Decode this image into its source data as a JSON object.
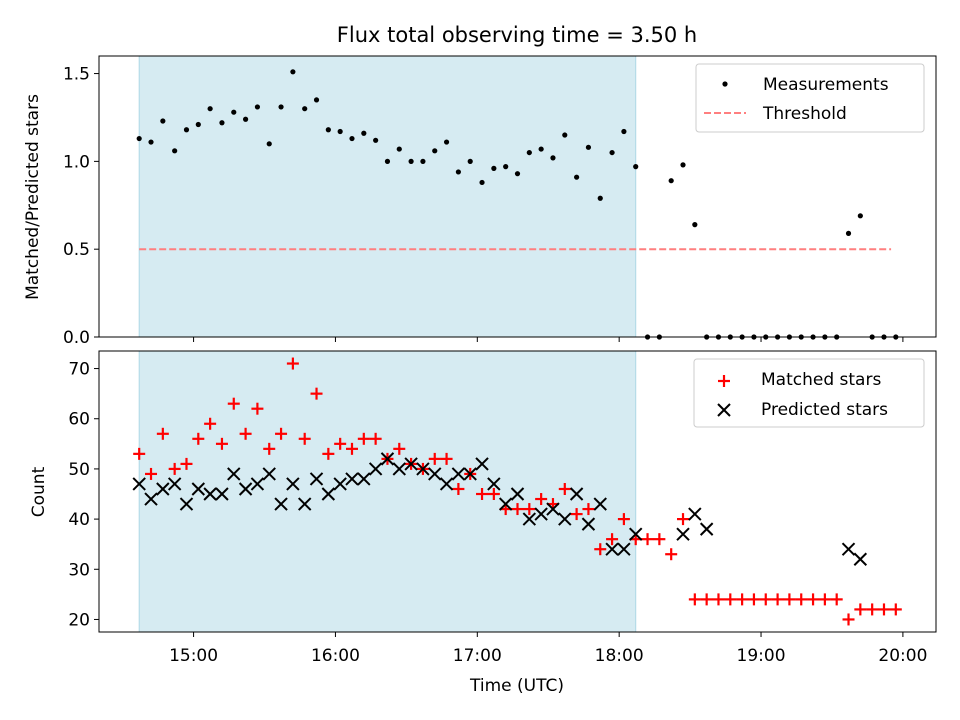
{
  "figure": {
    "title": "Flux total observing time = 3.50 h"
  },
  "chart_data": [
    {
      "type": "scatter",
      "ylabel": "Matched/Predicted stars",
      "xlim": [
        "14:20",
        "20:14"
      ],
      "ylim": [
        0,
        1.6
      ],
      "yticks": [
        "0.0",
        "0.5",
        "1.0",
        "1.5"
      ],
      "shaded_region": {
        "from": "14:37",
        "to": "18:07",
        "color": "#add8e6"
      },
      "grid": false,
      "legend_position": "top-right",
      "legend": [
        "Measurements",
        "Threshold"
      ],
      "threshold": {
        "name": "Threshold",
        "from": "14:37",
        "to": "19:55",
        "value": 0.5,
        "color": "#ff7f7f",
        "style": "dashed"
      },
      "series": [
        {
          "name": "Measurements",
          "marker": "dot",
          "color": "#000000",
          "points": [
            [
              "14:37",
              1.13
            ],
            [
              "14:42",
              1.11
            ],
            [
              "14:47",
              1.23
            ],
            [
              "14:52",
              1.06
            ],
            [
              "14:57",
              1.18
            ],
            [
              "15:02",
              1.21
            ],
            [
              "15:07",
              1.3
            ],
            [
              "15:12",
              1.22
            ],
            [
              "15:17",
              1.28
            ],
            [
              "15:22",
              1.24
            ],
            [
              "15:27",
              1.31
            ],
            [
              "15:32",
              1.1
            ],
            [
              "15:37",
              1.31
            ],
            [
              "15:42",
              1.51
            ],
            [
              "15:47",
              1.3
            ],
            [
              "15:52",
              1.35
            ],
            [
              "15:57",
              1.18
            ],
            [
              "16:02",
              1.17
            ],
            [
              "16:07",
              1.13
            ],
            [
              "16:12",
              1.16
            ],
            [
              "16:17",
              1.12
            ],
            [
              "16:22",
              1.0
            ],
            [
              "16:27",
              1.07
            ],
            [
              "16:32",
              1.0
            ],
            [
              "16:37",
              1.0
            ],
            [
              "16:42",
              1.06
            ],
            [
              "16:47",
              1.11
            ],
            [
              "16:52",
              0.94
            ],
            [
              "16:57",
              1.0
            ],
            [
              "17:02",
              0.88
            ],
            [
              "17:07",
              0.96
            ],
            [
              "17:12",
              0.97
            ],
            [
              "17:17",
              0.93
            ],
            [
              "17:22",
              1.05
            ],
            [
              "17:27",
              1.07
            ],
            [
              "17:32",
              1.02
            ],
            [
              "17:37",
              1.15
            ],
            [
              "17:42",
              0.91
            ],
            [
              "17:47",
              1.08
            ],
            [
              "17:52",
              0.79
            ],
            [
              "17:57",
              1.05
            ],
            [
              "18:02",
              1.17
            ],
            [
              "18:07",
              0.97
            ],
            [
              "18:12",
              0.0
            ],
            [
              "18:17",
              0.0
            ],
            [
              "18:22",
              0.89
            ],
            [
              "18:27",
              0.98
            ],
            [
              "18:32",
              0.64
            ],
            [
              "18:37",
              0.0
            ],
            [
              "18:42",
              0.0
            ],
            [
              "18:47",
              0.0
            ],
            [
              "18:52",
              0.0
            ],
            [
              "18:57",
              0.0
            ],
            [
              "19:02",
              0.0
            ],
            [
              "19:07",
              0.0
            ],
            [
              "19:12",
              0.0
            ],
            [
              "19:17",
              0.0
            ],
            [
              "19:22",
              0.0
            ],
            [
              "19:27",
              0.0
            ],
            [
              "19:32",
              0.0
            ],
            [
              "19:37",
              0.59
            ],
            [
              "19:42",
              0.69
            ],
            [
              "19:47",
              0.0
            ],
            [
              "19:52",
              0.0
            ],
            [
              "19:57",
              0.0
            ]
          ]
        }
      ]
    },
    {
      "type": "scatter",
      "xlabel": "Time (UTC)",
      "ylabel": "Count",
      "xlim": [
        "14:20",
        "20:14"
      ],
      "ylim": [
        17.5,
        73.5
      ],
      "yticks": [
        "20",
        "30",
        "40",
        "50",
        "60",
        "70"
      ],
      "xticks": [
        "15:00",
        "16:00",
        "17:00",
        "18:00",
        "19:00",
        "20:00"
      ],
      "shaded_region": {
        "from": "14:37",
        "to": "18:07",
        "color": "#add8e6"
      },
      "grid": false,
      "legend_position": "top-right",
      "legend": [
        "Matched stars",
        "Predicted stars"
      ],
      "series": [
        {
          "name": "Matched stars",
          "marker": "plus",
          "color": "#ff0000",
          "points": [
            [
              "14:37",
              53
            ],
            [
              "14:42",
              49
            ],
            [
              "14:47",
              57
            ],
            [
              "14:52",
              50
            ],
            [
              "14:57",
              51
            ],
            [
              "15:02",
              56
            ],
            [
              "15:07",
              59
            ],
            [
              "15:12",
              55
            ],
            [
              "15:17",
              63
            ],
            [
              "15:22",
              57
            ],
            [
              "15:27",
              62
            ],
            [
              "15:32",
              54
            ],
            [
              "15:37",
              57
            ],
            [
              "15:42",
              71
            ],
            [
              "15:47",
              56
            ],
            [
              "15:52",
              65
            ],
            [
              "15:57",
              53
            ],
            [
              "16:02",
              55
            ],
            [
              "16:07",
              54
            ],
            [
              "16:12",
              56
            ],
            [
              "16:17",
              56
            ],
            [
              "16:22",
              52
            ],
            [
              "16:27",
              54
            ],
            [
              "16:32",
              51
            ],
            [
              "16:37",
              50
            ],
            [
              "16:42",
              52
            ],
            [
              "16:47",
              52
            ],
            [
              "16:52",
              46
            ],
            [
              "16:57",
              49
            ],
            [
              "17:02",
              45
            ],
            [
              "17:07",
              45
            ],
            [
              "17:12",
              42
            ],
            [
              "17:17",
              42
            ],
            [
              "17:22",
              42
            ],
            [
              "17:27",
              44
            ],
            [
              "17:32",
              43
            ],
            [
              "17:37",
              46
            ],
            [
              "17:42",
              41
            ],
            [
              "17:47",
              42
            ],
            [
              "17:52",
              34
            ],
            [
              "17:57",
              36
            ],
            [
              "18:02",
              40
            ],
            [
              "18:07",
              36
            ],
            [
              "18:12",
              36
            ],
            [
              "18:17",
              36
            ],
            [
              "18:22",
              33
            ],
            [
              "18:27",
              40
            ],
            [
              "18:32",
              24
            ],
            [
              "18:37",
              24
            ],
            [
              "18:42",
              24
            ],
            [
              "18:47",
              24
            ],
            [
              "18:52",
              24
            ],
            [
              "18:57",
              24
            ],
            [
              "19:02",
              24
            ],
            [
              "19:07",
              24
            ],
            [
              "19:12",
              24
            ],
            [
              "19:17",
              24
            ],
            [
              "19:22",
              24
            ],
            [
              "19:27",
              24
            ],
            [
              "19:32",
              24
            ],
            [
              "19:37",
              20
            ],
            [
              "19:42",
              22
            ],
            [
              "19:47",
              22
            ],
            [
              "19:52",
              22
            ],
            [
              "19:57",
              22
            ]
          ]
        },
        {
          "name": "Predicted stars",
          "marker": "x",
          "color": "#000000",
          "points": [
            [
              "14:37",
              47
            ],
            [
              "14:42",
              44
            ],
            [
              "14:47",
              46
            ],
            [
              "14:52",
              47
            ],
            [
              "14:57",
              43
            ],
            [
              "15:02",
              46
            ],
            [
              "15:07",
              45
            ],
            [
              "15:12",
              45
            ],
            [
              "15:17",
              49
            ],
            [
              "15:22",
              46
            ],
            [
              "15:27",
              47
            ],
            [
              "15:32",
              49
            ],
            [
              "15:37",
              43
            ],
            [
              "15:42",
              47
            ],
            [
              "15:47",
              43
            ],
            [
              "15:52",
              48
            ],
            [
              "15:57",
              45
            ],
            [
              "16:02",
              47
            ],
            [
              "16:07",
              48
            ],
            [
              "16:12",
              48
            ],
            [
              "16:17",
              50
            ],
            [
              "16:22",
              52
            ],
            [
              "16:27",
              50
            ],
            [
              "16:32",
              51
            ],
            [
              "16:37",
              50
            ],
            [
              "16:42",
              49
            ],
            [
              "16:47",
              47
            ],
            [
              "16:52",
              49
            ],
            [
              "16:57",
              49
            ],
            [
              "17:02",
              51
            ],
            [
              "17:07",
              47
            ],
            [
              "17:12",
              43
            ],
            [
              "17:17",
              45
            ],
            [
              "17:22",
              40
            ],
            [
              "17:27",
              41
            ],
            [
              "17:32",
              42
            ],
            [
              "17:37",
              40
            ],
            [
              "17:42",
              45
            ],
            [
              "17:47",
              39
            ],
            [
              "17:52",
              43
            ],
            [
              "17:57",
              34
            ],
            [
              "18:02",
              34
            ],
            [
              "18:07",
              37
            ],
            [
              "18:27",
              37
            ],
            [
              "18:32",
              41
            ],
            [
              "18:37",
              38
            ],
            [
              "19:37",
              34
            ],
            [
              "19:42",
              32
            ]
          ]
        }
      ]
    }
  ]
}
